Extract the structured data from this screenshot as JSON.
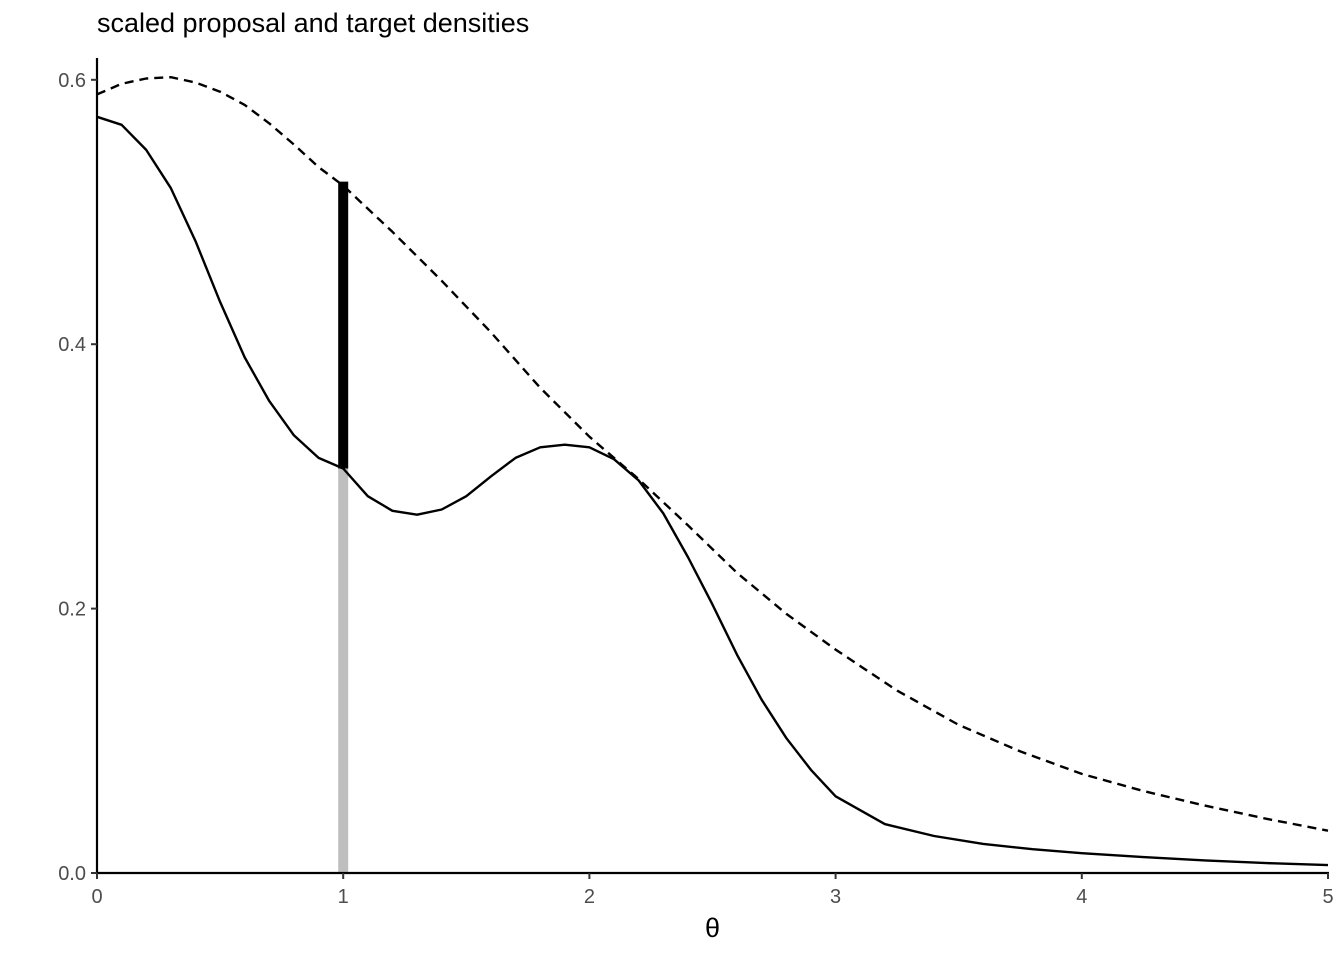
{
  "chart_data": {
    "type": "line",
    "title": "scaled proposal and target densities",
    "xlabel": "θ",
    "ylabel": "",
    "xlim": [
      0,
      5
    ],
    "ylim": [
      0,
      0.6
    ],
    "x_ticks": [
      "0",
      "1",
      "2",
      "3",
      "4",
      "5"
    ],
    "y_ticks": [
      "0.0",
      "0.2",
      "0.4",
      "0.6"
    ],
    "grid": false,
    "legend": "none",
    "series": [
      {
        "style": "solid",
        "color": "#000000",
        "x": [
          0,
          0.1,
          0.2,
          0.3,
          0.4,
          0.5,
          0.6,
          0.7,
          0.8,
          0.9,
          1.0,
          1.1,
          1.2,
          1.3,
          1.4,
          1.5,
          1.6,
          1.7,
          1.8,
          1.9,
          2.0,
          2.1,
          2.2,
          2.3,
          2.4,
          2.5,
          2.6,
          2.7,
          2.8,
          2.9,
          3.0,
          3.2,
          3.4,
          3.6,
          3.8,
          4.0,
          4.25,
          4.5,
          4.75,
          5.0
        ],
        "y": [
          0.572,
          0.566,
          0.547,
          0.518,
          0.478,
          0.432,
          0.39,
          0.357,
          0.331,
          0.314,
          0.306,
          0.285,
          0.274,
          0.271,
          0.275,
          0.285,
          0.3,
          0.314,
          0.322,
          0.324,
          0.322,
          0.313,
          0.297,
          0.272,
          0.239,
          0.203,
          0.165,
          0.131,
          0.102,
          0.078,
          0.058,
          0.037,
          0.028,
          0.022,
          0.018,
          0.015,
          0.012,
          0.0095,
          0.0075,
          0.006
        ]
      },
      {
        "style": "dashed",
        "color": "#000000",
        "x": [
          0,
          0.1,
          0.2,
          0.3,
          0.4,
          0.5,
          0.6,
          0.7,
          0.8,
          0.9,
          1.0,
          1.2,
          1.4,
          1.6,
          1.8,
          2.0,
          2.2,
          2.4,
          2.6,
          2.8,
          3.0,
          3.25,
          3.5,
          3.75,
          4.0,
          4.25,
          4.5,
          4.75,
          5.0
        ],
        "y": [
          0.589,
          0.597,
          0.601,
          0.602,
          0.598,
          0.591,
          0.581,
          0.567,
          0.551,
          0.534,
          0.52,
          0.485,
          0.448,
          0.409,
          0.367,
          0.33,
          0.298,
          0.263,
          0.227,
          0.196,
          0.169,
          0.138,
          0.112,
          0.092,
          0.075,
          0.062,
          0.051,
          0.041,
          0.032
        ]
      }
    ],
    "annotations": [
      {
        "type": "segment",
        "x": 1,
        "y_from": 0,
        "y_to": 0.306,
        "color": "#bebebe"
      },
      {
        "type": "segment",
        "x": 1,
        "y_from": 0.306,
        "y_to": 0.523,
        "color": "#000000"
      }
    ]
  }
}
